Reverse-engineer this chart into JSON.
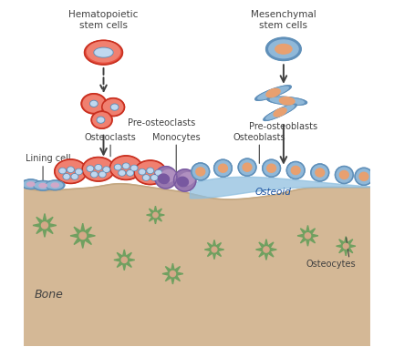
{
  "bg_color": "#ffffff",
  "bone_color": "#d4b896",
  "bone_dark": "#c4a882",
  "osteoid_color": "#90c0e0",
  "red_outer": "#e85040",
  "red_inner": "#c83020",
  "red_light": "#f08070",
  "blue_nucleus": "#8ab0d8",
  "blue_nucleus_dark": "#6090b8",
  "blue_cell_outer": "#6090c0",
  "blue_cell_mid": "#90b8d8",
  "blue_cell_light": "#c0d8f0",
  "peach_nucleus": "#e8a070",
  "purple_body": "#9878b0",
  "purple_dark": "#7858a0",
  "purple_mid": "#b090c0",
  "green_cell": "#70a060",
  "beige_nucleus": "#d4a888",
  "text_color": "#404040",
  "arrow_color": "#404040",
  "labels": {
    "hematopoietic": "Hematopoietic\nstem cells",
    "mesenchymal": "Mesenchymal\nstem cells",
    "pre_osteoclasts": "Pre-osteoclasts",
    "pre_osteoblasts": "Pre-osteoblasts",
    "lining_cell": "Lining cell",
    "osteoclasts": "Osteoclasts",
    "monocytes": "Monocytes",
    "osteoblasts": "Osteoblasts",
    "osteoid": "Osteoid",
    "osteocytes": "Osteocytes",
    "bone": "Bone"
  }
}
